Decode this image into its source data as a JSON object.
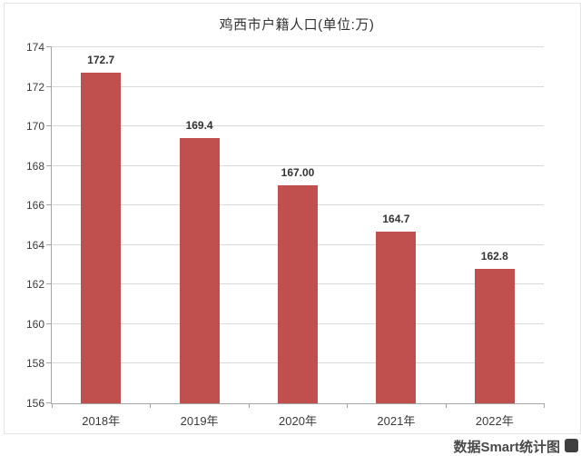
{
  "chart_data": {
    "type": "bar",
    "title": "鸡西市户籍人口(单位:万)",
    "categories": [
      "2018年",
      "2019年",
      "2020年",
      "2021年",
      "2022年"
    ],
    "values": [
      172.7,
      169.4,
      167.0,
      164.7,
      162.8
    ],
    "value_labels": [
      "172.7",
      "169.4",
      "167.00",
      "164.7",
      "162.8"
    ],
    "ylim": [
      156,
      174
    ],
    "ytick_step": 2,
    "ytick_labels": [
      "156",
      "158",
      "160",
      "162",
      "164",
      "166",
      "168",
      "170",
      "172",
      "174"
    ],
    "grid": true,
    "legend": false,
    "bar_color": "#c0504d",
    "grid_color": "#d9d9d9",
    "axis_color": "#a6a6a6",
    "text_color": "#3a3a3a"
  },
  "watermark": {
    "text": "数据Smart统计图"
  }
}
